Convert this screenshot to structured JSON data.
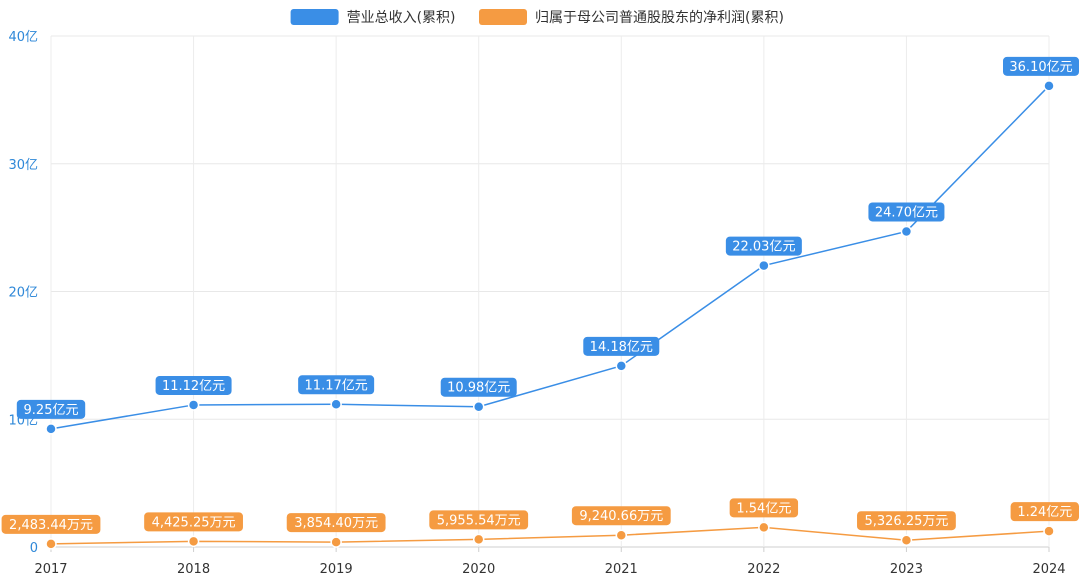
{
  "chart_data": {
    "type": "line",
    "categories": [
      "2017",
      "2018",
      "2019",
      "2020",
      "2021",
      "2022",
      "2023",
      "2024"
    ],
    "y_ticks": [
      "0",
      "10亿",
      "20亿",
      "30亿",
      "40亿"
    ],
    "ylim": [
      0,
      40
    ],
    "y_unit": "亿",
    "grid": true,
    "legend_position": "top-center",
    "series": [
      {
        "name": "营业总收入(累积)",
        "color": "#3a8ee6",
        "values": [
          9.25,
          11.12,
          11.17,
          10.98,
          14.18,
          22.03,
          24.7,
          36.1
        ],
        "labels": [
          "9.25亿元",
          "11.12亿元",
          "11.17亿元",
          "10.98亿元",
          "14.18亿元",
          "22.03亿元",
          "24.70亿元",
          "36.10亿元"
        ]
      },
      {
        "name": "归属于母公司普通股股东的净利润(累积)",
        "color": "#f59b42",
        "values": [
          0.2483,
          0.4425,
          0.3854,
          0.5956,
          0.9241,
          1.54,
          0.5326,
          1.24
        ],
        "labels": [
          "2,483.44万元",
          "4,425.25万元",
          "3,854.40万元",
          "5,955.54万元",
          "9,240.66万元",
          "1.54亿元",
          "5,326.25万元",
          "1.24亿元"
        ]
      }
    ]
  }
}
